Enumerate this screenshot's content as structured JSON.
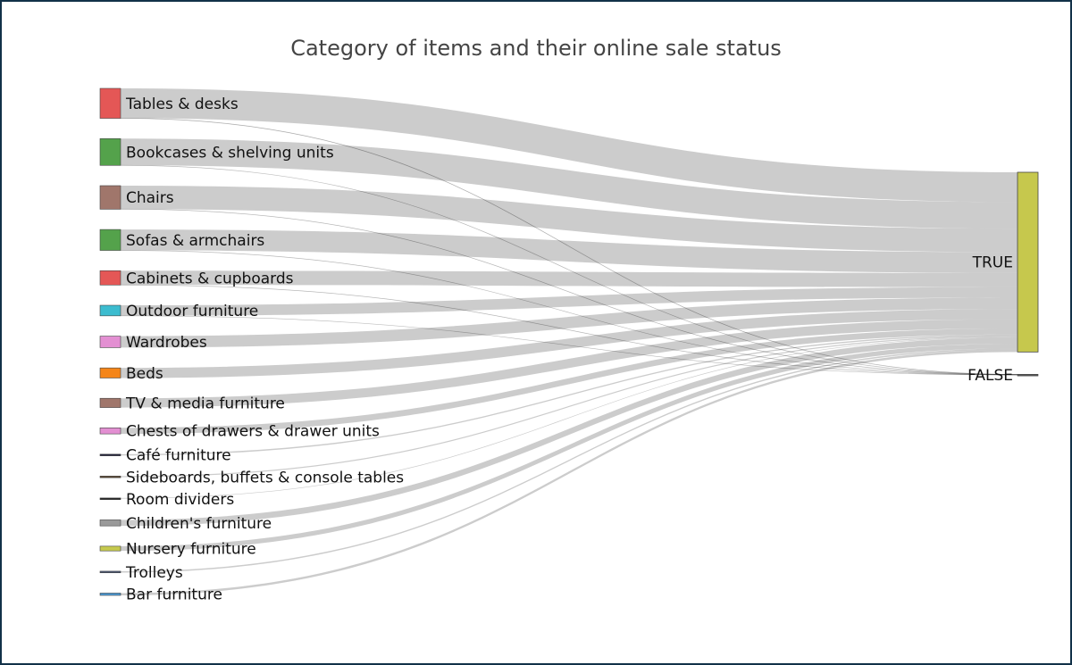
{
  "chart_data": {
    "type": "sankey",
    "title": "Category of items and their online sale status",
    "sources": [
      {
        "name": "Tables & desks",
        "color": "#e45756",
        "true": 612,
        "false": 4
      },
      {
        "name": "Bookcases & shelving units",
        "color": "#54a24b",
        "true": 548,
        "false": 2
      },
      {
        "name": "Chairs",
        "color": "#a0766b",
        "true": 481,
        "false": 3
      },
      {
        "name": "Sofas & armchairs",
        "color": "#54a24b",
        "true": 428,
        "false": 2
      },
      {
        "name": "Cabinets & cupboards",
        "color": "#e45756",
        "true": 292,
        "false": 2
      },
      {
        "name": "Outdoor furniture",
        "color": "#3cbccf",
        "true": 216,
        "false": 1
      },
      {
        "name": "Wardrobes",
        "color": "#e38fd2",
        "true": 236,
        "false": 0
      },
      {
        "name": "Beds",
        "color": "#f58518",
        "true": 208,
        "false": 0
      },
      {
        "name": "TV & media furniture",
        "color": "#a0766b",
        "true": 190,
        "false": 0
      },
      {
        "name": "Chests of drawers & drawer units",
        "color": "#e38fd2",
        "true": 125,
        "false": 0
      },
      {
        "name": "Café furniture",
        "color": "#1f1f3a",
        "true": 26,
        "false": 0
      },
      {
        "name": "Sideboards, buffets & console tables",
        "color": "#5a4630",
        "true": 23,
        "false": 0
      },
      {
        "name": "Room dividers",
        "color": "#222222",
        "true": 13,
        "false": 0
      },
      {
        "name": "Children's furniture",
        "color": "#9a9a9a",
        "true": 124,
        "false": 0
      },
      {
        "name": "Nursery furniture",
        "color": "#c5c94e",
        "true": 97,
        "false": 0
      },
      {
        "name": "Trolleys",
        "color": "#4c5876",
        "true": 28,
        "false": 0
      },
      {
        "name": "Bar furniture",
        "color": "#4c9bd6",
        "true": 47,
        "false": 0
      }
    ],
    "targets": [
      {
        "name": "TRUE",
        "color": "#c6c84d"
      },
      {
        "name": "FALSE",
        "color": "#555555"
      }
    ],
    "link_color": "rgba(0,0,0,0.2)"
  }
}
